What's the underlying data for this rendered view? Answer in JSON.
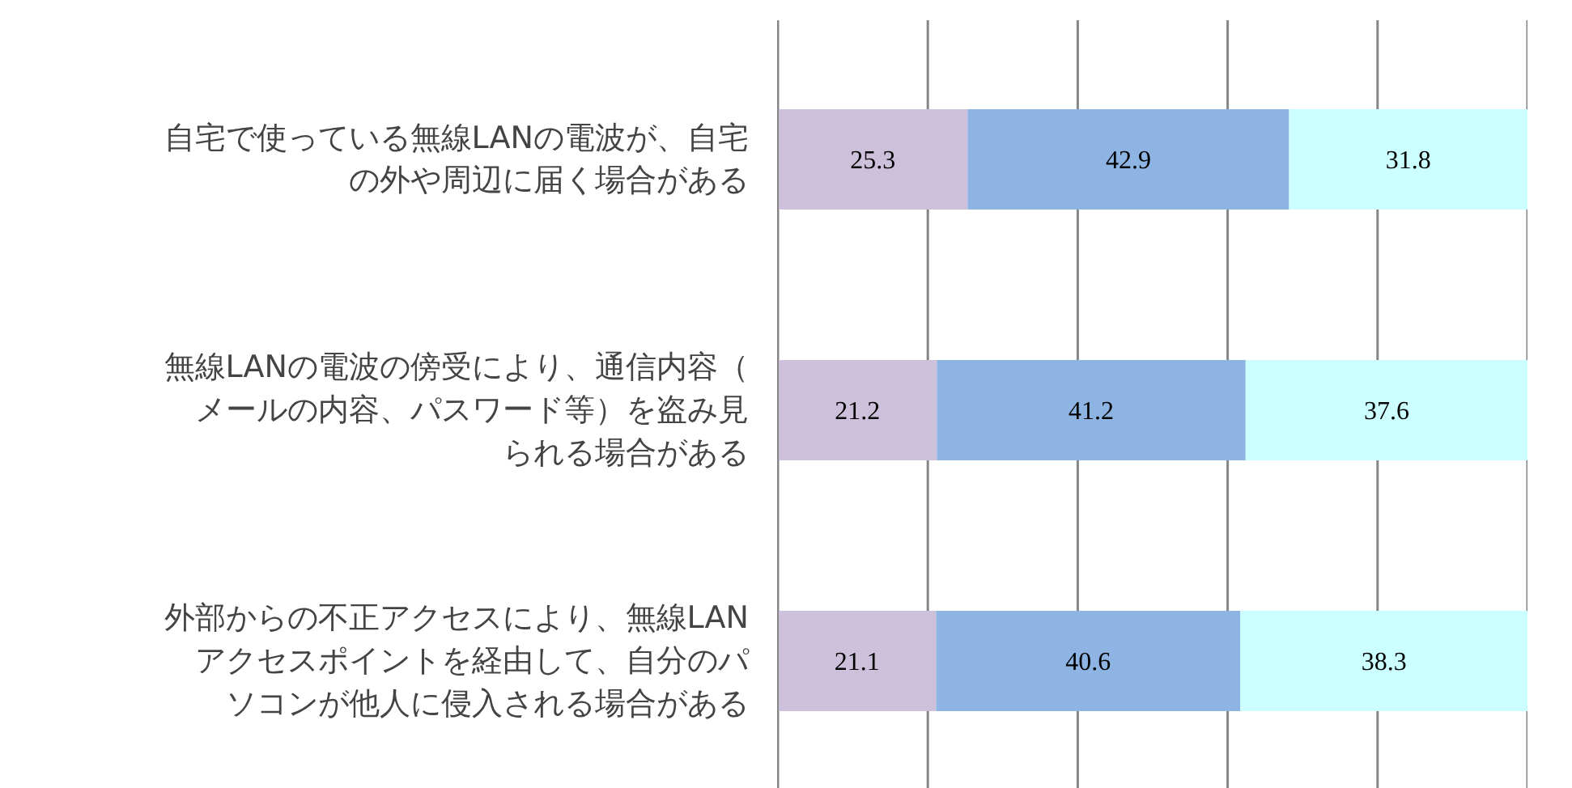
{
  "chart_data": {
    "type": "bar",
    "orientation": "horizontal",
    "stacked": true,
    "categories": [
      "自宅で使っている無線LANの電波が、自宅の外や周辺に届く場合がある",
      "無線LANの電波の傍受により、通信内容（メールの内容、パスワード等）を盗み見られる場合がある",
      "外部からの不正アクセスにより、無線LANアクセスポイントを経由して、自分のパソコンが他人に侵入される場合がある"
    ],
    "series": [
      {
        "color": "#ccc0da",
        "values": [
          25.3,
          21.2,
          21.1
        ]
      },
      {
        "color": "#8db4e2",
        "values": [
          42.9,
          41.2,
          40.6
        ]
      },
      {
        "color": "#ccffff",
        "values": [
          31.8,
          37.6,
          38.3
        ]
      }
    ],
    "xlim": [
      0,
      100
    ],
    "xticks": [
      {
        "value": 0,
        "label": null
      },
      {
        "value": 20,
        "label": null
      },
      {
        "value": 40,
        "label": null
      },
      {
        "value": 60,
        "label": null
      },
      {
        "value": 80,
        "label": null
      },
      {
        "value": 100,
        "label": null
      }
    ],
    "tick_labels": "y",
    "grid": "x",
    "data_labels": true
  }
}
